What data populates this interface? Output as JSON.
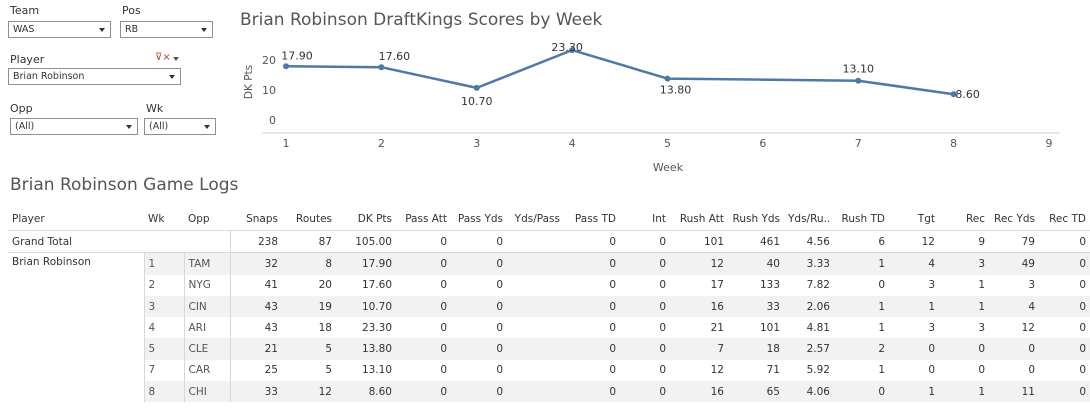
{
  "filters": {
    "team_label": "Team",
    "team_value": "WAS",
    "pos_label": "Pos",
    "pos_value": "RB",
    "player_label": "Player",
    "player_value": "Brian Robinson",
    "opp_label": "Opp",
    "opp_value": "(All)",
    "wk_label": "Wk",
    "wk_value": "(All)"
  },
  "chart_data": {
    "type": "line",
    "title": "Brian Robinson DraftKings Scores by Week",
    "xlabel": "Week",
    "ylabel": "DK Pts",
    "x": [
      1,
      2,
      3,
      4,
      5,
      7,
      8
    ],
    "y": [
      17.9,
      17.6,
      10.7,
      23.3,
      13.8,
      13.1,
      8.6
    ],
    "data_labels": [
      "17.90",
      "17.60",
      "10.70",
      "23.30",
      "13.80",
      "13.10",
      "8.60"
    ],
    "xlim": [
      1,
      9
    ],
    "ylim": [
      0,
      25
    ],
    "x_ticks": [
      "1",
      "2",
      "3",
      "4",
      "5",
      "6",
      "7",
      "8",
      "9"
    ],
    "y_ticks": [
      "0",
      "10",
      "20"
    ],
    "grid": false,
    "line_color": "#4e79a7"
  },
  "logs": {
    "title": "Brian Robinson Game Logs",
    "columns": [
      "Player",
      "Wk",
      "Opp",
      "Snaps",
      "Routes",
      "DK Pts",
      "Pass Att",
      "Pass Yds",
      "Yds/Pass",
      "Pass TD",
      "Int",
      "Rush Att",
      "Rush Yds",
      "Yds/Ru..",
      "Rush TD",
      "Tgt",
      "Rec",
      "Rec Yds",
      "Rec TD"
    ],
    "grand_total_label": "Grand Total",
    "grand_total": [
      "238",
      "87",
      "105.00",
      "0",
      "0",
      "",
      "0",
      "0",
      "101",
      "461",
      "4.56",
      "6",
      "12",
      "9",
      "79",
      "0"
    ],
    "player_name": "Brian Robinson",
    "rows": [
      {
        "wk": "1",
        "opp": "TAM",
        "vals": [
          "32",
          "8",
          "17.90",
          "0",
          "0",
          "",
          "0",
          "0",
          "12",
          "40",
          "3.33",
          "1",
          "4",
          "3",
          "49",
          "0"
        ]
      },
      {
        "wk": "2",
        "opp": "NYG",
        "vals": [
          "41",
          "20",
          "17.60",
          "0",
          "0",
          "",
          "0",
          "0",
          "17",
          "133",
          "7.82",
          "0",
          "3",
          "1",
          "3",
          "0"
        ]
      },
      {
        "wk": "3",
        "opp": "CIN",
        "vals": [
          "43",
          "19",
          "10.70",
          "0",
          "0",
          "",
          "0",
          "0",
          "16",
          "33",
          "2.06",
          "1",
          "1",
          "1",
          "4",
          "0"
        ]
      },
      {
        "wk": "4",
        "opp": "ARI",
        "vals": [
          "43",
          "18",
          "23.30",
          "0",
          "0",
          "",
          "0",
          "0",
          "21",
          "101",
          "4.81",
          "1",
          "3",
          "3",
          "12",
          "0"
        ]
      },
      {
        "wk": "5",
        "opp": "CLE",
        "vals": [
          "21",
          "5",
          "13.80",
          "0",
          "0",
          "",
          "0",
          "0",
          "7",
          "18",
          "2.57",
          "2",
          "0",
          "0",
          "0",
          "0"
        ]
      },
      {
        "wk": "7",
        "opp": "CAR",
        "vals": [
          "25",
          "5",
          "13.10",
          "0",
          "0",
          "",
          "0",
          "0",
          "12",
          "71",
          "5.92",
          "1",
          "0",
          "0",
          "0",
          "0"
        ]
      },
      {
        "wk": "8",
        "opp": "CHI",
        "vals": [
          "33",
          "12",
          "8.60",
          "0",
          "0",
          "",
          "0",
          "0",
          "16",
          "65",
          "4.06",
          "0",
          "1",
          "1",
          "11",
          "0"
        ]
      }
    ]
  }
}
